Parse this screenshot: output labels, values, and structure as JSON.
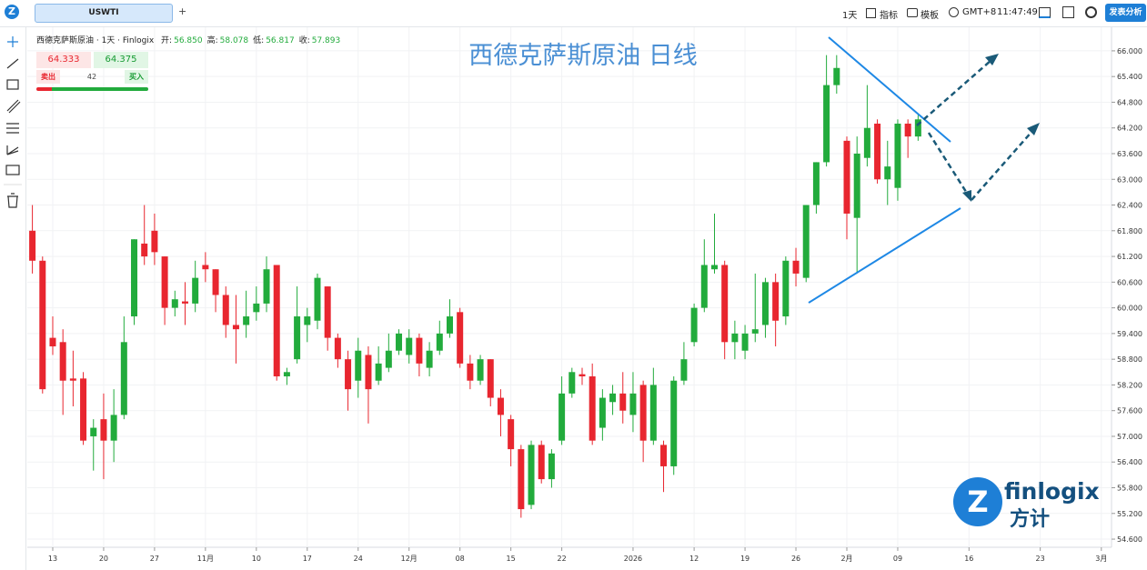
{
  "toolbar": {
    "tab": "USWTI",
    "add": "+",
    "interval": "1天",
    "indicators": "指标",
    "templates": "模板",
    "timezone": "GMT+8",
    "time": "11:47:49",
    "publish": "发表分析"
  },
  "legend": {
    "symbol": "西德克萨斯原油 · 1天 · Finlogix",
    "ohlc": [
      {
        "label": "开:",
        "value": "56.850"
      },
      {
        "label": "高:",
        "value": "58.078"
      },
      {
        "label": "低:",
        "value": "56.817"
      },
      {
        "label": "收:",
        "value": "57.893"
      }
    ]
  },
  "trade": {
    "sell_price": "64.333",
    "buy_price": "64.375",
    "sell": "卖出",
    "quantity": "42",
    "buy": "买入"
  },
  "watermark": {
    "name": "finlogix",
    "cn": "方计"
  },
  "chart_data": {
    "type": "candlestick",
    "title": "西德克萨斯原油 日线",
    "up_color": "#22ab3c",
    "down_color": "#e8262f",
    "open": [
      61.8,
      61.1,
      59.3,
      59.2,
      58.35,
      58.35,
      57.0,
      57.4,
      56.9,
      57.5,
      59.8,
      61.5,
      61.8,
      61.2,
      60.0,
      60.15,
      60.1,
      61.0,
      60.9,
      60.3,
      59.6,
      59.6,
      59.9,
      60.1,
      61.0,
      58.4,
      58.8,
      59.6,
      59.7,
      60.5,
      59.3,
      58.8,
      58.3,
      58.9,
      58.3,
      58.6,
      59.0,
      58.9,
      59.3,
      58.6,
      59.0,
      59.4,
      59.9,
      58.7,
      58.3,
      58.8,
      57.9,
      57.4,
      56.7,
      55.4,
      56.8,
      56.0,
      56.9,
      58.0,
      58.45,
      58.4,
      57.2,
      57.8,
      58.0,
      57.5,
      58.2,
      56.9,
      56.8,
      56.3,
      58.3,
      59.2,
      60.0,
      60.9,
      61.0,
      59.2,
      59.0,
      59.4,
      59.6,
      60.6,
      59.8,
      61.1,
      60.7,
      62.4,
      63.4,
      65.2,
      63.9,
      62.1,
      63.5,
      64.3,
      63.0,
      62.8,
      64.3,
      64.0
    ],
    "high": [
      62.4,
      61.2,
      59.8,
      59.5,
      59.0,
      58.5,
      57.4,
      58.0,
      58.1,
      59.8,
      61.6,
      62.4,
      62.2,
      61.2,
      60.4,
      60.6,
      61.1,
      61.3,
      60.9,
      60.5,
      60.3,
      60.4,
      60.5,
      61.2,
      61.0,
      58.6,
      60.5,
      60.0,
      60.8,
      60.5,
      59.4,
      59.0,
      59.3,
      59.1,
      59.1,
      59.4,
      59.5,
      59.5,
      59.4,
      59.2,
      59.7,
      60.2,
      60.0,
      58.9,
      58.9,
      58.8,
      58.1,
      57.5,
      56.8,
      56.9,
      56.9,
      56.7,
      58.4,
      58.6,
      58.6,
      58.7,
      58.1,
      58.2,
      58.5,
      58.5,
      58.3,
      58.6,
      56.9,
      58.4,
      59.2,
      60.1,
      61.6,
      62.2,
      61.1,
      59.7,
      59.6,
      60.8,
      60.7,
      60.8,
      61.2,
      61.4,
      62.4,
      63.4,
      65.9,
      65.9,
      64.0,
      64.0,
      65.2,
      64.4,
      63.9,
      64.4,
      64.4,
      64.5
    ],
    "low": [
      60.8,
      58.0,
      58.9,
      57.5,
      57.7,
      56.8,
      56.2,
      56.0,
      56.4,
      57.4,
      59.6,
      61.0,
      61.0,
      59.6,
      59.8,
      59.6,
      59.9,
      60.6,
      59.9,
      59.3,
      58.7,
      59.3,
      59.7,
      59.9,
      58.3,
      58.2,
      58.7,
      59.2,
      59.5,
      59.0,
      58.6,
      57.6,
      57.9,
      57.3,
      58.2,
      58.5,
      58.9,
      58.7,
      58.4,
      58.4,
      58.9,
      59.3,
      58.6,
      58.1,
      58.2,
      57.7,
      57.0,
      56.3,
      55.1,
      55.3,
      55.9,
      55.8,
      56.8,
      57.9,
      58.2,
      56.8,
      56.9,
      57.5,
      57.3,
      57.1,
      56.4,
      56.8,
      55.7,
      56.1,
      58.2,
      59.1,
      59.9,
      60.8,
      58.8,
      58.8,
      58.8,
      59.2,
      59.3,
      59.1,
      59.6,
      60.5,
      60.6,
      62.2,
      63.3,
      65.0,
      61.6,
      60.8,
      63.3,
      62.9,
      62.4,
      62.5,
      63.5,
      63.9
    ],
    "close": [
      61.1,
      58.1,
      59.1,
      58.3,
      58.3,
      56.9,
      57.2,
      56.9,
      57.5,
      59.2,
      61.6,
      61.2,
      61.3,
      60.0,
      60.2,
      60.1,
      60.7,
      60.9,
      60.3,
      59.6,
      59.5,
      59.8,
      60.1,
      60.9,
      58.4,
      58.5,
      59.8,
      59.8,
      60.7,
      59.3,
      58.8,
      58.1,
      59.0,
      58.1,
      58.7,
      59.0,
      59.4,
      59.3,
      58.7,
      59.0,
      59.4,
      59.8,
      58.7,
      58.3,
      58.8,
      57.9,
      57.5,
      56.7,
      55.3,
      56.8,
      56.0,
      56.6,
      58.0,
      58.5,
      58.4,
      56.9,
      57.9,
      58.0,
      57.6,
      58.0,
      56.9,
      58.2,
      56.3,
      58.3,
      58.8,
      60.0,
      61.0,
      61.0,
      59.2,
      59.4,
      59.4,
      59.5,
      60.6,
      59.7,
      61.1,
      60.8,
      62.4,
      63.4,
      65.2,
      65.6,
      62.2,
      63.6,
      64.2,
      63.0,
      63.3,
      64.3,
      64.0,
      64.4
    ],
    "xlim": [
      -0.5,
      106
    ],
    "xticks": [
      {
        "value": 2,
        "label": "13"
      },
      {
        "value": 7,
        "label": "20"
      },
      {
        "value": 12,
        "label": "27"
      },
      {
        "value": 17,
        "label": "11月"
      },
      {
        "value": 22,
        "label": "10"
      },
      {
        "value": 27,
        "label": "17"
      },
      {
        "value": 32,
        "label": "24"
      },
      {
        "value": 37,
        "label": "12月"
      },
      {
        "value": 42,
        "label": "08"
      },
      {
        "value": 47,
        "label": "15"
      },
      {
        "value": 52,
        "label": "22"
      },
      {
        "value": 59,
        "label": "2026"
      },
      {
        "value": 65,
        "label": "12"
      },
      {
        "value": 70,
        "label": "19"
      },
      {
        "value": 75,
        "label": "26"
      },
      {
        "value": 80,
        "label": "2月"
      },
      {
        "value": 85,
        "label": "09"
      },
      {
        "value": 92,
        "label": "16"
      },
      {
        "value": 99,
        "label": "23"
      },
      {
        "value": 105,
        "label": "3月"
      }
    ],
    "ylim": [
      54.41,
      66.55
    ],
    "yticks": [
      {
        "value": 54.6,
        "label": "54.600"
      },
      {
        "value": 55.2,
        "label": "55.200"
      },
      {
        "value": 55.8,
        "label": "55.800"
      },
      {
        "value": 56.4,
        "label": "56.400"
      },
      {
        "value": 57,
        "label": "57.000"
      },
      {
        "value": 57.6,
        "label": "57.600"
      },
      {
        "value": 58.2,
        "label": "58.200"
      },
      {
        "value": 58.8,
        "label": "58.800"
      },
      {
        "value": 59.4,
        "label": "59.400"
      },
      {
        "value": 60,
        "label": "60.000"
      },
      {
        "value": 60.6,
        "label": "60.600"
      },
      {
        "value": 61.2,
        "label": "61.200"
      },
      {
        "value": 61.8,
        "label": "61.800"
      },
      {
        "value": 62.4,
        "label": "62.400"
      },
      {
        "value": 63,
        "label": "63.000"
      },
      {
        "value": 63.6,
        "label": "63.600"
      },
      {
        "value": 64.2,
        "label": "64.200"
      },
      {
        "value": 64.8,
        "label": "64.800"
      },
      {
        "value": 65.4,
        "label": "65.400"
      },
      {
        "value": 66,
        "label": "66.000"
      }
    ],
    "grid": true
  }
}
